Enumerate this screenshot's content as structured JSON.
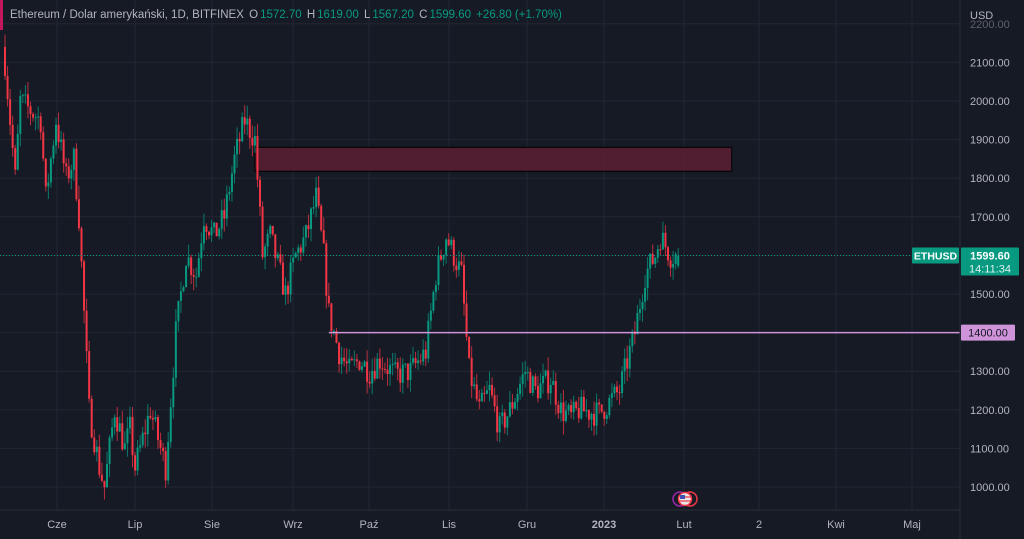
{
  "header": {
    "symbol_title": "Ethereum / Dolar amerykański, 1D, BITFINEX",
    "o_label": "O",
    "o_value": "1572.70",
    "h_label": "H",
    "h_value": "1619.00",
    "l_label": "L",
    "l_value": "1567.20",
    "c_label": "C",
    "c_value": "1599.60",
    "change": "+26.80 (+1.70%)"
  },
  "price_axis": {
    "currency": "USD",
    "ticks": [
      "2200.00",
      "2100.00",
      "2000.00",
      "1900.00",
      "1800.00",
      "1700.00",
      "1600.00",
      "1500.00",
      "1400.00",
      "1300.00",
      "1200.00",
      "1100.00",
      "1000.00"
    ],
    "symbol_tag": "ETHUSD",
    "last_price": "1599.60",
    "countdown": "14:11:34",
    "line_label": "1400.00"
  },
  "time_axis": {
    "ticks": [
      "Cze",
      "Lip",
      "Sie",
      "Wrz",
      "Paź",
      "Lis",
      "Gru",
      "2023",
      "Lut",
      "2",
      "Kwi",
      "Maj"
    ]
  },
  "colors": {
    "up": "#089981",
    "down": "#f23645",
    "background": "#161a25",
    "line": "#ce93d8",
    "zone": "#5c1f33",
    "tag": "#089981"
  },
  "icons": {
    "events": "us-flag-economic-event-icon"
  },
  "chart_data": {
    "type": "candlestick",
    "title": "Ethereum / Dolar amerykański, 1D, BITFINEX",
    "ylim": [
      940,
      2230
    ],
    "start_date": "2022-05-12",
    "close_path": [
      [
        0,
        2100
      ],
      [
        4,
        1800
      ],
      [
        6,
        2000
      ],
      [
        14,
        1950
      ],
      [
        16,
        1750
      ],
      [
        20,
        1950
      ],
      [
        24,
        1800
      ],
      [
        27,
        1850
      ],
      [
        29,
        1700
      ],
      [
        33,
        1200
      ],
      [
        37,
        1050
      ],
      [
        39,
        1000
      ],
      [
        43,
        1200
      ],
      [
        47,
        1100
      ],
      [
        49,
        1150
      ],
      [
        51,
        1050
      ],
      [
        57,
        1200
      ],
      [
        61,
        1100
      ],
      [
        63,
        1050
      ],
      [
        67,
        1400
      ],
      [
        71,
        1600
      ],
      [
        75,
        1550
      ],
      [
        78,
        1700
      ],
      [
        82,
        1650
      ],
      [
        86,
        1700
      ],
      [
        90,
        1850
      ],
      [
        94,
        1950
      ],
      [
        98,
        1900
      ],
      [
        101,
        1600
      ],
      [
        104,
        1650
      ],
      [
        108,
        1550
      ],
      [
        110,
        1500
      ],
      [
        114,
        1600
      ],
      [
        118,
        1650
      ],
      [
        122,
        1750
      ],
      [
        125,
        1600
      ],
      [
        127,
        1450
      ],
      [
        131,
        1350
      ],
      [
        135,
        1300
      ],
      [
        139,
        1330
      ],
      [
        143,
        1300
      ],
      [
        147,
        1330
      ],
      [
        153,
        1290
      ],
      [
        159,
        1300
      ],
      [
        165,
        1350
      ],
      [
        169,
        1550
      ],
      [
        173,
        1650
      ],
      [
        176,
        1600
      ],
      [
        179,
        1550
      ],
      [
        182,
        1300
      ],
      [
        186,
        1200
      ],
      [
        190,
        1250
      ],
      [
        194,
        1150
      ],
      [
        198,
        1200
      ],
      [
        204,
        1300
      ],
      [
        208,
        1250
      ],
      [
        214,
        1280
      ],
      [
        218,
        1200
      ],
      [
        222,
        1180
      ],
      [
        225,
        1200
      ],
      [
        233,
        1190
      ],
      [
        241,
        1250
      ],
      [
        247,
        1400
      ],
      [
        251,
        1550
      ],
      [
        255,
        1600
      ],
      [
        257,
        1650
      ],
      [
        261,
        1600
      ],
      [
        264,
        1599.6
      ]
    ],
    "last_candle": {
      "open": 1572.7,
      "high": 1619.0,
      "low": 1567.2,
      "close": 1599.6
    },
    "horizontal_line": 1400,
    "zone": {
      "from_price": 1818,
      "to_price": 1880,
      "from_day": 98,
      "to_day": 285
    }
  }
}
